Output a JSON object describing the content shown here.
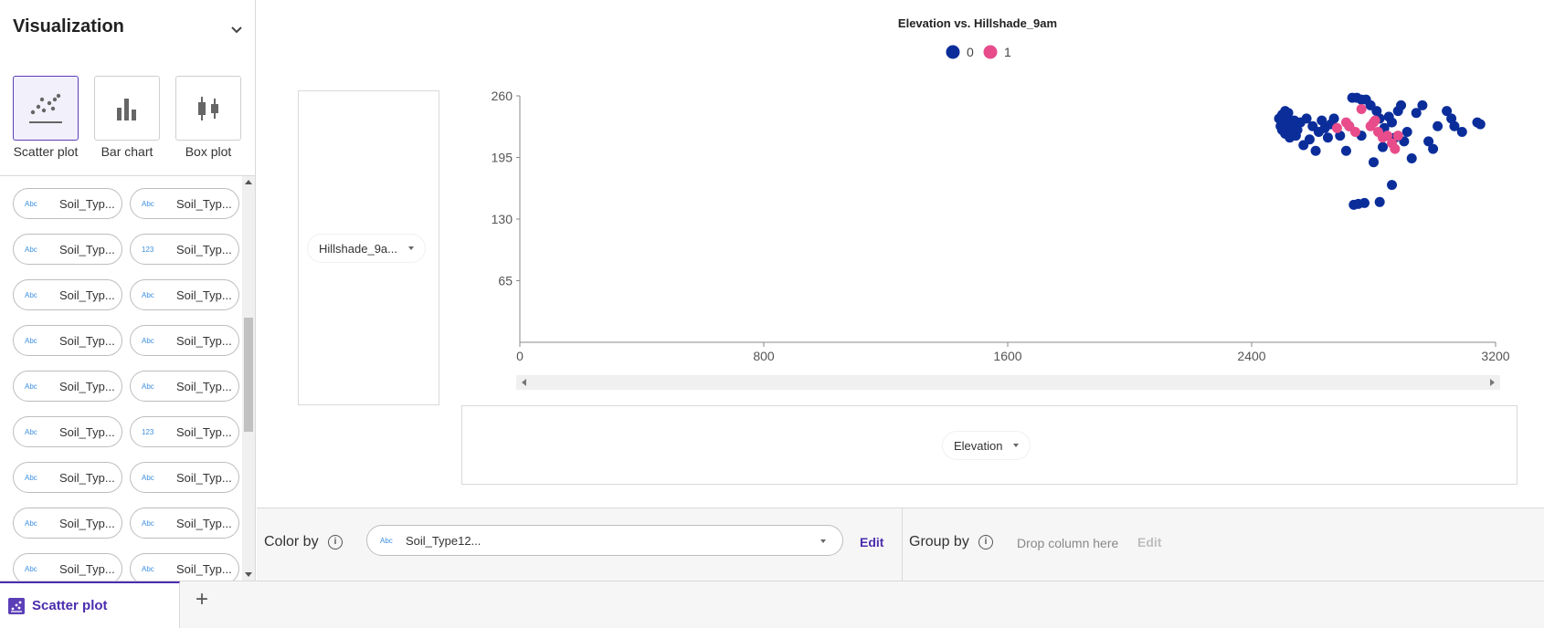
{
  "sidebar": {
    "title": "Visualization",
    "chart_types": [
      {
        "label": "Scatter plot",
        "active": true
      },
      {
        "label": "Bar chart",
        "active": false
      },
      {
        "label": "Box plot",
        "active": false
      }
    ],
    "fields": [
      {
        "type": "Abc",
        "name": "Soil_Typ..."
      },
      {
        "type": "Abc",
        "name": "Soil_Typ..."
      },
      {
        "type": "Abc",
        "name": "Soil_Typ..."
      },
      {
        "type": "123",
        "name": "Soil_Typ..."
      },
      {
        "type": "Abc",
        "name": "Soil_Typ..."
      },
      {
        "type": "Abc",
        "name": "Soil_Typ..."
      },
      {
        "type": "Abc",
        "name": "Soil_Typ..."
      },
      {
        "type": "Abc",
        "name": "Soil_Typ..."
      },
      {
        "type": "Abc",
        "name": "Soil_Typ..."
      },
      {
        "type": "Abc",
        "name": "Soil_Typ..."
      },
      {
        "type": "Abc",
        "name": "Soil_Typ..."
      },
      {
        "type": "123",
        "name": "Soil_Typ..."
      },
      {
        "type": "Abc",
        "name": "Soil_Typ..."
      },
      {
        "type": "Abc",
        "name": "Soil_Typ..."
      },
      {
        "type": "Abc",
        "name": "Soil_Typ..."
      },
      {
        "type": "Abc",
        "name": "Soil_Typ..."
      },
      {
        "type": "Abc",
        "name": "Soil_Typ..."
      },
      {
        "type": "Abc",
        "name": "Soil_Typ..."
      }
    ]
  },
  "axes": {
    "y_field": "Hillshade_9a...",
    "x_field": "Elevation"
  },
  "config": {
    "color_by_label": "Color by",
    "color_by_type": "Abc",
    "color_by_value": "Soil_Type12...",
    "edit_label": "Edit",
    "group_by_label": "Group by",
    "group_by_placeholder": "Drop column here",
    "group_edit_label": "Edit",
    "info_glyph": "i"
  },
  "tabs": {
    "active_label": "Scatter plot",
    "add_glyph": "+"
  },
  "colors": {
    "series_0": "#0a2d9a",
    "series_1": "#e84c8b",
    "accent": "#4b2dae"
  },
  "chart_data": {
    "type": "scatter",
    "title": "Elevation vs. Hillshade_9am",
    "xlabel": "",
    "ylabel": "",
    "xlim": [
      0,
      3200
    ],
    "ylim": [
      0,
      260
    ],
    "xticks": [
      0,
      800,
      1600,
      2400,
      3200
    ],
    "yticks": [
      65,
      130,
      195,
      260
    ],
    "legend": "top-center",
    "series": [
      {
        "name": "0",
        "color": "#0a2d9a",
        "points": [
          [
            2490,
            236
          ],
          [
            2495,
            228
          ],
          [
            2500,
            224
          ],
          [
            2505,
            232
          ],
          [
            2510,
            220
          ],
          [
            2515,
            238
          ],
          [
            2520,
            226
          ],
          [
            2525,
            216
          ],
          [
            2530,
            230
          ],
          [
            2535,
            222
          ],
          [
            2540,
            234
          ],
          [
            2545,
            218
          ],
          [
            2500,
            240
          ],
          [
            2510,
            244
          ],
          [
            2520,
            242
          ],
          [
            2530,
            228
          ],
          [
            2550,
            224
          ],
          [
            2560,
            232
          ],
          [
            2570,
            208
          ],
          [
            2580,
            236
          ],
          [
            2590,
            214
          ],
          [
            2600,
            228
          ],
          [
            2610,
            202
          ],
          [
            2620,
            222
          ],
          [
            2630,
            234
          ],
          [
            2640,
            226
          ],
          [
            2650,
            216
          ],
          [
            2660,
            230
          ],
          [
            2670,
            236
          ],
          [
            2690,
            218
          ],
          [
            2710,
            202
          ],
          [
            2720,
            228
          ],
          [
            2730,
            258
          ],
          [
            2745,
            258
          ],
          [
            2760,
            256
          ],
          [
            2775,
            256
          ],
          [
            2790,
            250
          ],
          [
            2810,
            244
          ],
          [
            2820,
            236
          ],
          [
            2835,
            226
          ],
          [
            2850,
            238
          ],
          [
            2860,
            232
          ],
          [
            2870,
            216
          ],
          [
            2880,
            244
          ],
          [
            2890,
            250
          ],
          [
            2900,
            212
          ],
          [
            2910,
            222
          ],
          [
            2925,
            194
          ],
          [
            2940,
            242
          ],
          [
            2960,
            250
          ],
          [
            2980,
            212
          ],
          [
            2995,
            204
          ],
          [
            3010,
            228
          ],
          [
            3040,
            244
          ],
          [
            3055,
            236
          ],
          [
            3065,
            228
          ],
          [
            3090,
            222
          ],
          [
            3140,
            232
          ],
          [
            3150,
            230
          ],
          [
            2800,
            190
          ],
          [
            2760,
            218
          ],
          [
            2830,
            206
          ],
          [
            2860,
            166
          ],
          [
            2820,
            148
          ],
          [
            2735,
            145
          ],
          [
            2750,
            146
          ],
          [
            2770,
            147
          ]
        ]
      },
      {
        "name": "1",
        "color": "#e84c8b",
        "points": [
          [
            2680,
            226
          ],
          [
            2710,
            232
          ],
          [
            2740,
            222
          ],
          [
            2760,
            246
          ],
          [
            2790,
            228
          ],
          [
            2805,
            234
          ],
          [
            2815,
            222
          ],
          [
            2830,
            216
          ],
          [
            2845,
            218
          ],
          [
            2860,
            210
          ],
          [
            2870,
            204
          ],
          [
            2880,
            218
          ],
          [
            2720,
            228
          ],
          [
            2800,
            232
          ]
        ]
      }
    ]
  }
}
